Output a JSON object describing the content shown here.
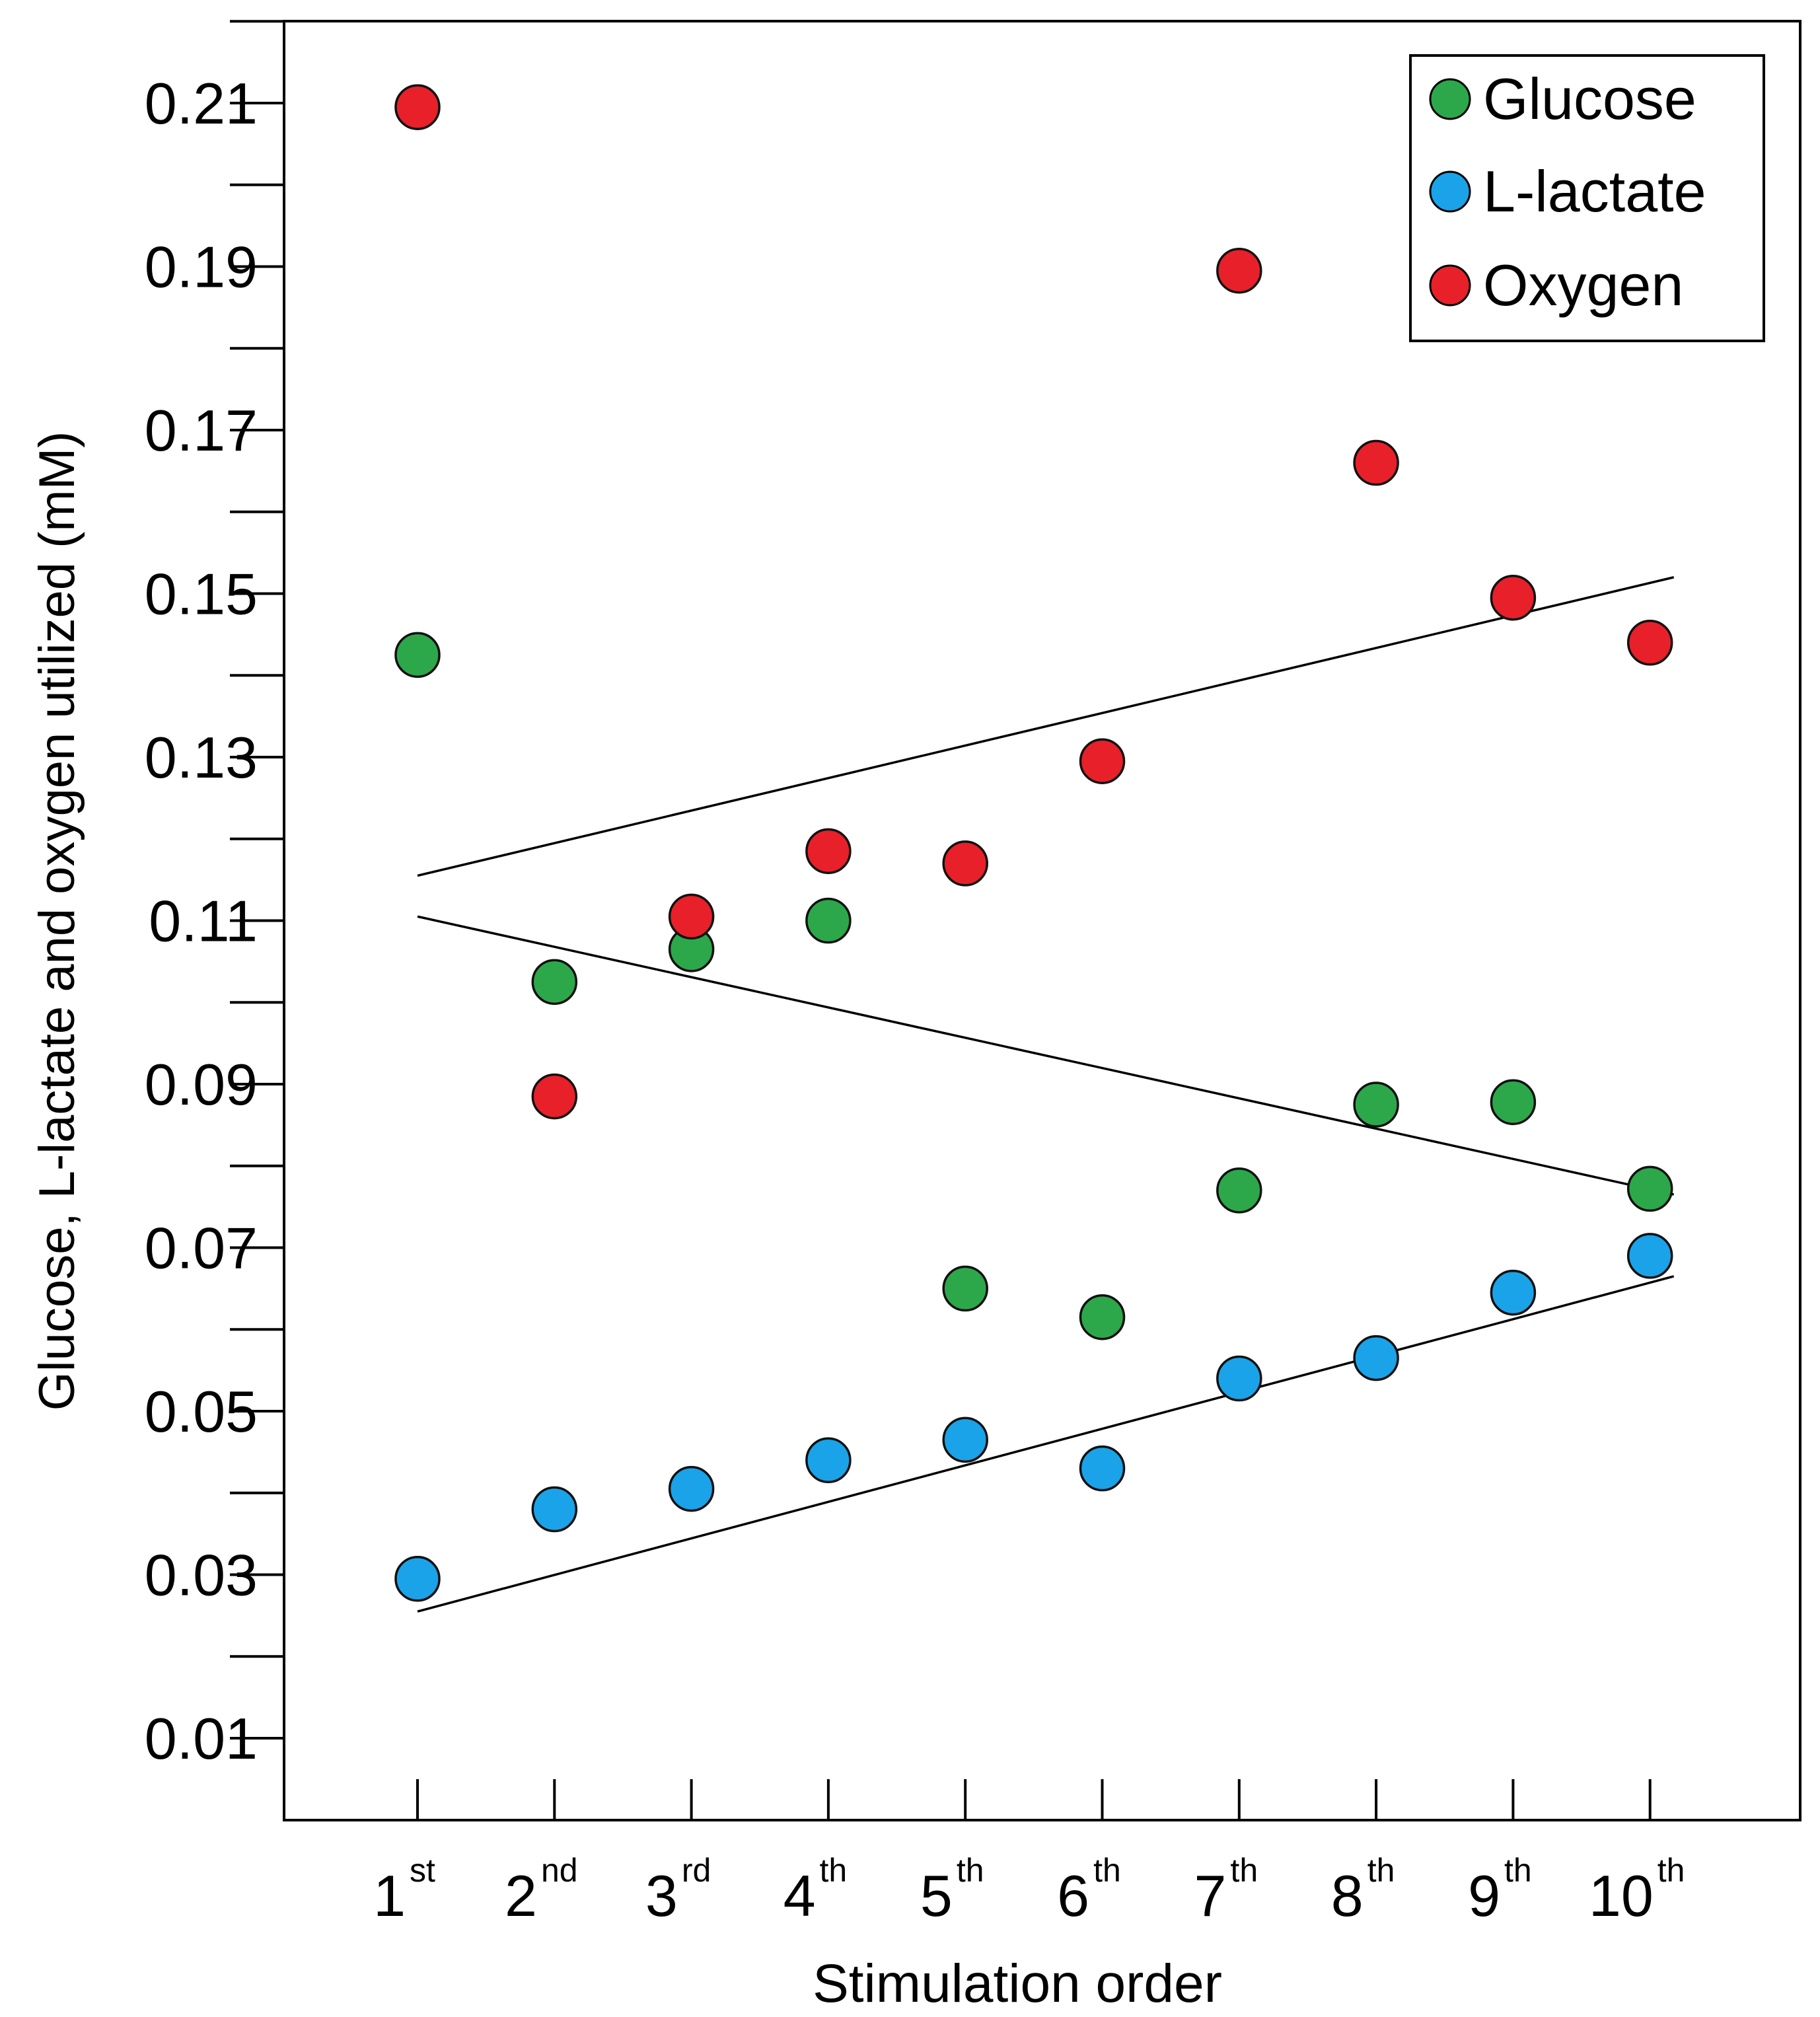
{
  "chart_data": {
    "type": "scatter",
    "title": "",
    "xlabel": "Stimulation order",
    "ylabel": "Glucose, L-lactate and oxygen utilized (mM)",
    "ylim": [
      0,
      0.22
    ],
    "yticks": [
      "0.01",
      "0.03",
      "0.05",
      "0.07",
      "0.09",
      "0.11",
      "0.13",
      "0.15",
      "0.17",
      "0.19",
      "0.21"
    ],
    "categories": [
      {
        "num": "1",
        "suffix": "st"
      },
      {
        "num": "2",
        "suffix": "nd"
      },
      {
        "num": "3",
        "suffix": "rd"
      },
      {
        "num": "4",
        "suffix": "th"
      },
      {
        "num": "5",
        "suffix": "th"
      },
      {
        "num": "6",
        "suffix": "th"
      },
      {
        "num": "7",
        "suffix": "th"
      },
      {
        "num": "8",
        "suffix": "th"
      },
      {
        "num": "9",
        "suffix": "th"
      },
      {
        "num": "10",
        "suffix": "th"
      }
    ],
    "legend_position": "top-right",
    "series": [
      {
        "name": "Glucose",
        "color": "#2ca84a",
        "values": [
          0.1425,
          0.1025,
          0.1065,
          0.11,
          0.065,
          0.0615,
          0.077,
          0.0875,
          0.0878,
          0.0772
        ],
        "trend": [
          0.1105,
          0.0765
        ]
      },
      {
        "name": "L-lactate",
        "color": "#1aa3e8",
        "values": [
          0.0295,
          0.038,
          0.0405,
          0.044,
          0.0465,
          0.043,
          0.054,
          0.0565,
          0.0645,
          0.069
        ],
        "trend": [
          0.0255,
          0.0665
        ]
      },
      {
        "name": "Oxygen",
        "color": "#e8202a",
        "values": [
          0.2095,
          0.0885,
          0.1105,
          0.1185,
          0.117,
          0.1295,
          0.1895,
          0.166,
          0.1495,
          0.144
        ],
        "trend": [
          0.1155,
          0.152
        ]
      }
    ]
  }
}
